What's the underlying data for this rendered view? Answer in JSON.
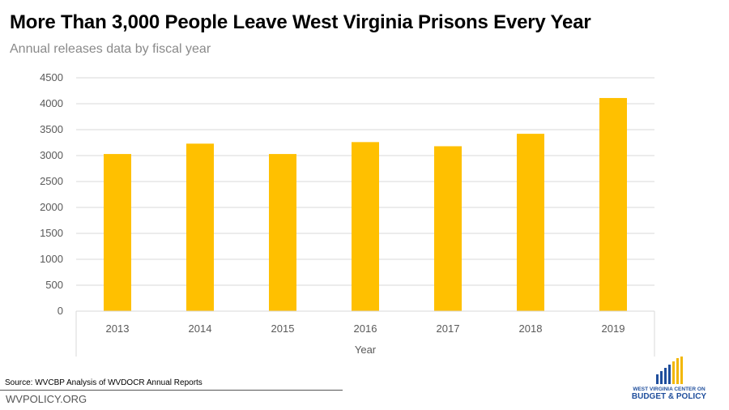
{
  "header": {
    "title": "More Than 3,000 People Leave West Virginia Prisons Every Year",
    "subtitle": "Annual releases data by fiscal year"
  },
  "chart_data": {
    "type": "bar",
    "categories": [
      "2013",
      "2014",
      "2015",
      "2016",
      "2017",
      "2018",
      "2019"
    ],
    "values": [
      3030,
      3230,
      3030,
      3260,
      3180,
      3420,
      4110
    ],
    "xlabel": "Year",
    "ylabel": "",
    "ylim": [
      0,
      4500
    ],
    "yticks": [
      0,
      500,
      1000,
      1500,
      2000,
      2500,
      3000,
      3500,
      4000,
      4500
    ],
    "grid": true,
    "legend": "none",
    "bar_color": "#FFC000"
  },
  "footer": {
    "source": "Source: WVCBP Analysis of WVDOCR Annual Reports",
    "site": "WVPOLICY.ORG"
  },
  "logo": {
    "line1": "WEST VIRGINIA CENTER ON",
    "line2": "BUDGET & POLICY",
    "icon": "bar-chart-logo-icon",
    "colors": [
      "#1f4e9c",
      "#f2b705"
    ]
  }
}
